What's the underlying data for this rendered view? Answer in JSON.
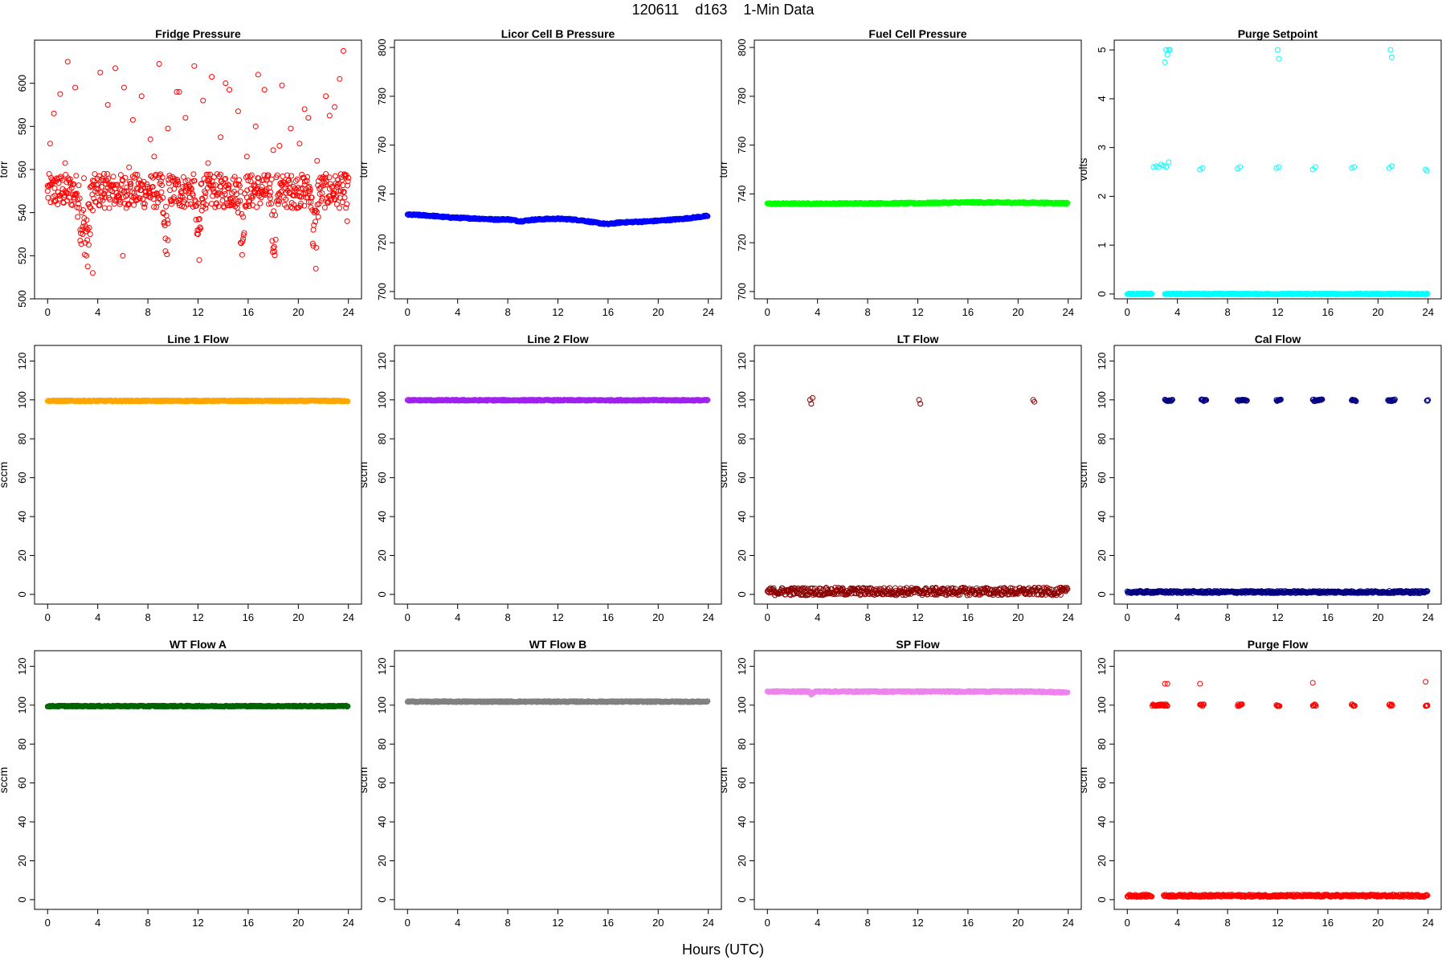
{
  "page": {
    "title": "120611    d163    1-Min Data",
    "xlabel": "Hours (UTC)"
  },
  "chart_data": [
    {
      "type": "scatter",
      "title": "Fridge Pressure",
      "ylabel": "torr",
      "xlim": [
        0,
        24
      ],
      "ylim": [
        500,
        620
      ],
      "xticks": [
        0,
        4,
        8,
        12,
        16,
        20,
        24
      ],
      "yticks": [
        500,
        520,
        540,
        560,
        580,
        600
      ],
      "color": "#ff0000",
      "series": [
        {
          "values_desc": "",
          "x": [
            0.0,
            0.3,
            0.6,
            0.9,
            1.2,
            1.5,
            1.8,
            2.1,
            2.4,
            2.6,
            2.8,
            3.0,
            3.1,
            3.2,
            3.4,
            3.6,
            3.8,
            4.0,
            4.3,
            4.6,
            4.9,
            5.2,
            5.5,
            5.8,
            6.0,
            6.3,
            6.6,
            6.9,
            7.2,
            7.5,
            7.8,
            8.1,
            8.4,
            8.7,
            9.0,
            9.2,
            9.4,
            9.6,
            9.8,
            10.1,
            10.4,
            10.7,
            11.0,
            11.3,
            11.6,
            11.8,
            12.0,
            12.1,
            12.3,
            12.6,
            12.9,
            13.2,
            13.5,
            13.8,
            14.1,
            14.4,
            14.7,
            15.0,
            15.2,
            15.4,
            15.6,
            15.9,
            16.2,
            16.5,
            16.8,
            17.1,
            17.4,
            17.7,
            17.9,
            18.1,
            18.4,
            18.7,
            19.0,
            19.3,
            19.6,
            19.9,
            20.2,
            20.5,
            20.8,
            21.0,
            21.2,
            21.4,
            21.6,
            21.9,
            22.2,
            22.5,
            22.8,
            23.1,
            23.4,
            23.7,
            23.9,
            0.5,
            1.0,
            1.6,
            2.2,
            3.3,
            3.6,
            4.2,
            4.8,
            5.4,
            6.1,
            6.8,
            7.5,
            8.2,
            8.9,
            9.6,
            10.3,
            11.0,
            11.7,
            12.4,
            13.1,
            13.8,
            14.5,
            15.2,
            15.9,
            16.6,
            17.3,
            18.0,
            18.7,
            19.4,
            20.1,
            20.8,
            21.5,
            22.2,
            22.9,
            23.6,
            0.2,
            1.4,
            2.9,
            4.5,
            6.5,
            8.5,
            10.5,
            12.8,
            14.2,
            16.8,
            18.5,
            20.5,
            22.5,
            23.3
          ],
          "y": [
            550,
            553,
            548,
            556,
            551,
            549,
            554,
            547,
            538,
            532,
            530,
            526,
            520,
            515,
            530,
            541,
            545,
            549,
            552,
            550,
            553,
            548,
            546,
            545,
            520,
            550,
            552,
            549,
            551,
            553,
            548,
            550,
            552,
            549,
            546,
            540,
            528,
            535,
            546,
            551,
            553,
            549,
            552,
            550,
            548,
            543,
            530,
            518,
            541,
            549,
            553,
            551,
            548,
            552,
            550,
            553,
            549,
            546,
            540,
            526,
            538,
            547,
            551,
            553,
            549,
            552,
            550,
            548,
            539,
            522,
            544,
            550,
            553,
            549,
            552,
            548,
            551,
            553,
            550,
            545,
            532,
            514,
            538,
            549,
            553,
            551,
            548,
            552,
            550,
            547,
            536,
            586,
            595,
            610,
            598,
            544,
            512,
            605,
            590,
            607,
            598,
            583,
            594,
            574,
            609,
            579,
            596,
            584,
            608,
            592,
            603,
            575,
            597,
            587,
            566,
            580,
            597,
            569,
            599,
            579,
            572,
            584,
            564,
            594,
            589,
            615,
            572,
            563,
            556,
            558,
            561,
            566,
            596,
            563,
            600,
            604,
            571,
            588,
            585,
            602
          ]
        }
      ]
    },
    {
      "type": "line",
      "title": "Licor Cell B Pressure",
      "ylabel": "torr",
      "xlim": [
        0,
        24
      ],
      "ylim": [
        697,
        803
      ],
      "xticks": [
        0,
        4,
        8,
        12,
        16,
        20,
        24
      ],
      "yticks": [
        700,
        720,
        740,
        760,
        780,
        800
      ],
      "color": "#0000ff",
      "series": [
        {
          "x": [
            0,
            1,
            2,
            3,
            4,
            5,
            6,
            7,
            8,
            9,
            10,
            11,
            12,
            13,
            14,
            15,
            16,
            17,
            18,
            19,
            20,
            21,
            22,
            23,
            24
          ],
          "y": [
            731.5,
            731.3,
            731.0,
            730.5,
            730.2,
            730.0,
            729.8,
            729.5,
            729.6,
            728.8,
            729.4,
            729.7,
            729.8,
            729.6,
            729.1,
            728.2,
            727.6,
            728.3,
            728.5,
            728.7,
            729.0,
            729.4,
            729.8,
            730.4,
            731.0
          ]
        }
      ]
    },
    {
      "type": "line",
      "title": "Fuel Cell Pressure",
      "ylabel": "torr",
      "xlim": [
        0,
        24
      ],
      "ylim": [
        697,
        803
      ],
      "xticks": [
        0,
        4,
        8,
        12,
        16,
        20,
        24
      ],
      "yticks": [
        700,
        720,
        740,
        760,
        780,
        800
      ],
      "color": "#00ff00",
      "series": [
        {
          "x": [
            0,
            4,
            8,
            12,
            16,
            20,
            24
          ],
          "y": [
            736.0,
            736.0,
            736.1,
            736.2,
            736.5,
            736.4,
            736.2
          ]
        }
      ]
    },
    {
      "type": "scatter",
      "title": "Purge Setpoint",
      "ylabel": "volts",
      "xlim": [
        0,
        24
      ],
      "ylim": [
        -0.1,
        5.2
      ],
      "xticks": [
        0,
        4,
        8,
        12,
        16,
        20,
        24
      ],
      "yticks": [
        0,
        1,
        2,
        3,
        4,
        5
      ],
      "color": "#00ffff",
      "series": [
        {
          "x": [
            2.1,
            2.3,
            2.5,
            2.7,
            2.9,
            3.1,
            3.3,
            5.8,
            6.0,
            8.8,
            9.0,
            11.9,
            12.1,
            14.8,
            15.0,
            17.9,
            18.1,
            20.9,
            21.1,
            23.8,
            23.9,
            3.0,
            3.1,
            3.2,
            3.3,
            3.4,
            12.0,
            12.1,
            21.0,
            21.1
          ],
          "y": [
            2.6,
            2.62,
            2.6,
            2.65,
            2.63,
            2.6,
            2.7,
            2.55,
            2.58,
            2.57,
            2.6,
            2.58,
            2.6,
            2.55,
            2.6,
            2.58,
            2.6,
            2.58,
            2.62,
            2.55,
            2.52,
            4.75,
            5.0,
            4.9,
            5.0,
            5.0,
            5.0,
            4.82,
            5.0,
            4.85
          ],
          "baseline_y": 0,
          "baseline_ranges": [
            [
              0,
              2.0
            ],
            [
              3.0,
              24
            ]
          ]
        }
      ]
    },
    {
      "type": "line",
      "title": "Line 1 Flow",
      "ylabel": "sccm",
      "xlim": [
        0,
        24
      ],
      "ylim": [
        -5,
        128
      ],
      "xticks": [
        0,
        4,
        8,
        12,
        16,
        20,
        24
      ],
      "yticks": [
        0,
        20,
        40,
        60,
        80,
        100,
        120
      ],
      "color": "#ffa500",
      "series": [
        {
          "x": [
            0,
            24
          ],
          "y": [
            99.5,
            99.5
          ]
        }
      ]
    },
    {
      "type": "line",
      "title": "Line 2 Flow",
      "ylabel": "sccm",
      "xlim": [
        0,
        24
      ],
      "ylim": [
        -5,
        128
      ],
      "xticks": [
        0,
        4,
        8,
        12,
        16,
        20,
        24
      ],
      "yticks": [
        0,
        20,
        40,
        60,
        80,
        100,
        120
      ],
      "color": "#a020f0",
      "series": [
        {
          "x": [
            0,
            24
          ],
          "y": [
            99.8,
            99.8
          ]
        }
      ]
    },
    {
      "type": "scatter",
      "title": "LT Flow",
      "ylabel": "sccm",
      "xlim": [
        0,
        24
      ],
      "ylim": [
        -5,
        128
      ],
      "xticks": [
        0,
        4,
        8,
        12,
        16,
        20,
        24
      ],
      "yticks": [
        0,
        20,
        40,
        60,
        80,
        100,
        120
      ],
      "color": "#8b0000",
      "series": [
        {
          "x": [
            3.4,
            3.5,
            3.6,
            12.1,
            12.2,
            21.2,
            21.3
          ],
          "y": [
            100,
            98,
            101,
            100,
            98,
            100,
            99
          ],
          "baseline_y": 1.5,
          "baseline_ranges": [
            [
              0,
              24
            ]
          ]
        }
      ]
    },
    {
      "type": "scatter",
      "title": "Cal Flow",
      "ylabel": "sccm",
      "xlim": [
        0,
        24
      ],
      "ylim": [
        -5,
        128
      ],
      "xticks": [
        0,
        4,
        8,
        12,
        16,
        20,
        24
      ],
      "yticks": [
        0,
        20,
        40,
        60,
        80,
        100,
        120
      ],
      "color": "#000080",
      "series": [
        {
          "segments_high": [
            [
              3.0,
              3.6
            ],
            [
              5.9,
              6.3
            ],
            [
              8.8,
              9.6
            ],
            [
              11.9,
              12.3
            ],
            [
              14.8,
              15.6
            ],
            [
              17.9,
              18.3
            ],
            [
              20.8,
              21.4
            ],
            [
              23.9,
              24.0
            ]
          ],
          "high_y": 99.8,
          "baseline_y": 1.2,
          "baseline_ranges": [
            [
              0,
              24
            ]
          ]
        }
      ]
    },
    {
      "type": "line",
      "title": "WT Flow A",
      "ylabel": "sccm",
      "xlim": [
        0,
        24
      ],
      "ylim": [
        -5,
        128
      ],
      "xticks": [
        0,
        4,
        8,
        12,
        16,
        20,
        24
      ],
      "yticks": [
        0,
        20,
        40,
        60,
        80,
        100,
        120
      ],
      "color": "#006400",
      "series": [
        {
          "x": [
            0,
            24
          ],
          "y": [
            99.5,
            99.5
          ]
        }
      ]
    },
    {
      "type": "line",
      "title": "WT Flow B",
      "ylabel": "sccm",
      "xlim": [
        0,
        24
      ],
      "ylim": [
        -5,
        128
      ],
      "xticks": [
        0,
        4,
        8,
        12,
        16,
        20,
        24
      ],
      "yticks": [
        0,
        20,
        40,
        60,
        80,
        100,
        120
      ],
      "color": "#808080",
      "series": [
        {
          "x": [
            0,
            24
          ],
          "y": [
            101.8,
            101.8
          ]
        }
      ]
    },
    {
      "type": "line",
      "title": "SP Flow",
      "ylabel": "sccm",
      "xlim": [
        0,
        24
      ],
      "ylim": [
        -5,
        128
      ],
      "xticks": [
        0,
        4,
        8,
        12,
        16,
        20,
        24
      ],
      "yticks": [
        0,
        20,
        40,
        60,
        80,
        100,
        120
      ],
      "color": "#ee82ee",
      "series": [
        {
          "x": [
            0,
            3.4,
            3.5,
            3.8,
            6,
            9,
            12,
            15,
            18,
            21,
            24
          ],
          "y": [
            107,
            107,
            105.5,
            107,
            107,
            107,
            107,
            107,
            107,
            107,
            106.5
          ]
        }
      ]
    },
    {
      "type": "scatter",
      "title": "Purge Flow",
      "ylabel": "sccm",
      "xlim": [
        0,
        24
      ],
      "ylim": [
        -5,
        128
      ],
      "xticks": [
        0,
        4,
        8,
        12,
        16,
        20,
        24
      ],
      "yticks": [
        0,
        20,
        40,
        60,
        80,
        100,
        120
      ],
      "color": "#ff0000",
      "series": [
        {
          "segments_high": [
            [
              2.0,
              3.2
            ],
            [
              5.8,
              6.1
            ],
            [
              8.8,
              9.2
            ],
            [
              11.9,
              12.2
            ],
            [
              14.8,
              15.1
            ],
            [
              17.9,
              18.2
            ],
            [
              20.9,
              21.2
            ],
            [
              23.8,
              24.0
            ]
          ],
          "high_y": 100,
          "outliers_x": [
            3.0,
            3.2,
            5.8,
            14.8,
            23.8
          ],
          "outliers_y": [
            111,
            111,
            111,
            111.5,
            112
          ],
          "baseline_y": 2,
          "baseline_ranges": [
            [
              0,
              2.0
            ],
            [
              2.9,
              24
            ]
          ]
        }
      ]
    }
  ]
}
